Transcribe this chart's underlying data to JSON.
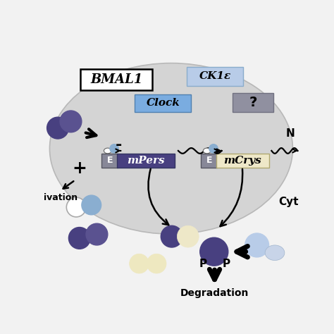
{
  "bg_color": "#f2f2f2",
  "ellipse_color": "#d4d4d4",
  "ellipse_edge": "#b8b8b8",
  "dark_purple": "#484080",
  "mid_purple": "#5a5290",
  "light_blue": "#8aaed0",
  "pale_blue": "#b8cce8",
  "pale_blue2": "#c8d8ec",
  "gray_box": "#9090a0",
  "light_gray": "#b8b8c0",
  "cream": "#eee8c8",
  "blue_box": "#7aace0",
  "white": "#ffffff",
  "black": "#000000",
  "title_BMAL1": "BMAL1",
  "title_CK1e": "CK1ε",
  "title_Clock": "Clock",
  "title_question": "?",
  "title_mPers": "mPers",
  "title_mCrys": "mCrys",
  "label_E": "E",
  "label_plus": "+",
  "label_minus": "-",
  "label_P": "P",
  "label_Degradation": "Degradation",
  "label_ivation": "ivation",
  "label_N": "N",
  "label_Cyt": "Cyt"
}
